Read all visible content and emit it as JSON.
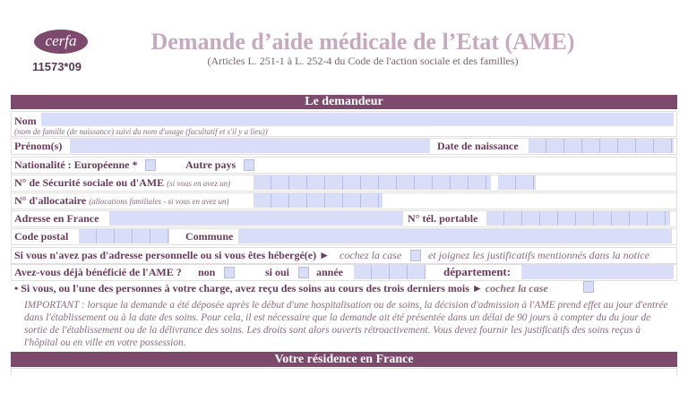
{
  "header": {
    "logo": "cerfa",
    "form_number": "11573*09",
    "title": "Demande d’aide médicale de l’Etat (AME)",
    "subtitle": "(Articles L. 251-1 à L. 252-4 du Code de l'action sociale et des familles)"
  },
  "section1": {
    "title": "Le demandeur",
    "nom": "Nom",
    "nom_hint": "(nom de famille (de naissance) suivi du nom d'usage (facultatif et s'il y a lieu))",
    "prenom": "Prénom(s)",
    "date_naissance": "Date de naissance",
    "nationalite": "Nationalité : Européenne *",
    "autre_pays": "Autre pays",
    "secu": "N° de Sécurité sociale ou d'AME",
    "secu_hint": "(si vous en avez un)",
    "allocataire": "N° d'allocataire",
    "allocataire_hint": "(allocations familiales - si vous en avez un)",
    "adresse": "Adresse en France",
    "tel": "N° tél. portable",
    "code_postal": "Code postal",
    "commune": "Commune",
    "heberge": "Si vous n'avez pas d'adresse personnelle ou si vous êtes hébergé(e) ►",
    "heberge_case": "cochez la case",
    "heberge_suite": "et joignez les justificatifs mentionnés dans la notice",
    "ame_q": "Avez-vous déjà bénéficié de l'AME ?",
    "non": "non",
    "si_oui": "si oui",
    "annee": "année",
    "departement": "département:",
    "soins": "Si vous, ou l'une des personnes à votre charge, avez reçu des soins au cours des trois derniers mois ►",
    "soins_case": "cochez la case",
    "important": "IMPORTANT : lorsque la demande a été déposée après le début d'une hospitalisation ou de soins, la décision d'admission à l'AME prend effet au jour d'entrée dans l'établissement ou à la date des soins. Pour cela, il est nécessaire que la demande ait été présentée dans un délai de 90 jours à compter du du jour de sortie de l'établissement ou de la délivrance des soins. Les droits sont alors ouverts rétroactivement. Vous devez fournir les justificatifs des soins reçus à l'hôpital ou en ville en votre possession."
  },
  "section2": {
    "title": "Votre résidence en France"
  },
  "colors": {
    "accent": "#7d4a6d",
    "field": "#d9ddf8",
    "title": "#c7a9be"
  }
}
